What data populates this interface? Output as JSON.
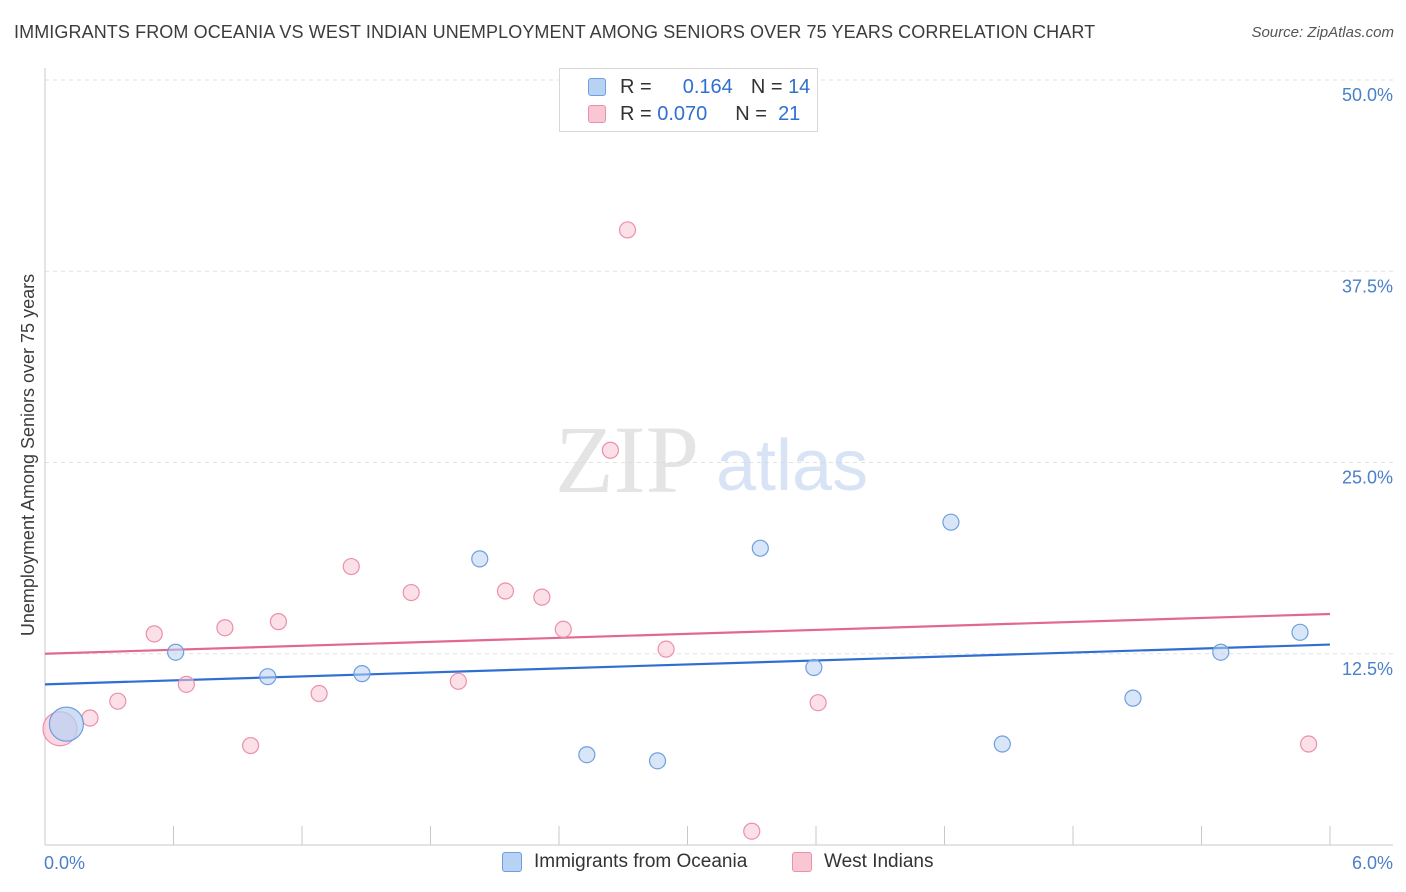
{
  "title": "IMMIGRANTS FROM OCEANIA VS WEST INDIAN UNEMPLOYMENT AMONG SENIORS OVER 75 YEARS CORRELATION CHART",
  "source": "Source: ZipAtlas.com",
  "watermark": {
    "zip": "ZIP",
    "atlas": "atlas"
  },
  "legend": {
    "rows": [
      {
        "r_label": "R =",
        "r_value": "0.164",
        "n_label": "N =",
        "n_value": "14"
      },
      {
        "r_label": "R =",
        "r_value": "0.070",
        "n_label": "N =",
        "n_value": "21"
      }
    ]
  },
  "bottom_legend": {
    "series1": "Immigrants from Oceania",
    "series2": "West Indians"
  },
  "colors": {
    "blue_fill": "#b8d2f3",
    "blue_stroke": "#6f9fe0",
    "blue_line": "#2f6fd1",
    "pink_fill": "#f9c6d4",
    "pink_stroke": "#ec8fab",
    "pink_line": "#e2688f",
    "tick_text": "#4a7fc9",
    "grid": "#e2e2e2"
  },
  "chart_data": {
    "type": "scatter",
    "title": "IMMIGRANTS FROM OCEANIA VS WEST INDIAN UNEMPLOYMENT AMONG SENIORS OVER 75 YEARS CORRELATION CHART",
    "xlabel": "",
    "ylabel": "Unemployment Among Seniors over 75 years",
    "xlim": [
      0,
      6
    ],
    "ylim": [
      0,
      50
    ],
    "x_tick_labels": [
      "0.0%",
      "6.0%"
    ],
    "y_ticks": [
      12.5,
      25.0,
      37.5,
      50.0
    ],
    "y_tick_labels": [
      "12.5%",
      "25.0%",
      "37.5%",
      "50.0%"
    ],
    "grid": true,
    "series": [
      {
        "name": "Immigrants from Oceania",
        "color": "blue",
        "R": 0.164,
        "N": 14,
        "points": [
          {
            "x": 0.1,
            "y": 7.9,
            "big": true
          },
          {
            "x": 0.61,
            "y": 12.6
          },
          {
            "x": 1.04,
            "y": 11.0
          },
          {
            "x": 1.48,
            "y": 11.2
          },
          {
            "x": 2.03,
            "y": 18.7
          },
          {
            "x": 2.53,
            "y": 5.9
          },
          {
            "x": 2.86,
            "y": 5.5
          },
          {
            "x": 3.34,
            "y": 19.4
          },
          {
            "x": 3.59,
            "y": 11.6
          },
          {
            "x": 4.23,
            "y": 21.1
          },
          {
            "x": 4.47,
            "y": 6.6
          },
          {
            "x": 5.08,
            "y": 9.6
          },
          {
            "x": 5.49,
            "y": 12.6
          },
          {
            "x": 5.86,
            "y": 13.9
          }
        ],
        "trend": {
          "x1": 0,
          "y1": 10.5,
          "x2": 6,
          "y2": 13.1
        }
      },
      {
        "name": "West Indians",
        "color": "pink",
        "R": 0.07,
        "N": 21,
        "points": [
          {
            "x": 0.07,
            "y": 7.6,
            "big": true
          },
          {
            "x": 0.21,
            "y": 8.3
          },
          {
            "x": 0.34,
            "y": 9.4
          },
          {
            "x": 0.51,
            "y": 13.8
          },
          {
            "x": 0.66,
            "y": 10.5
          },
          {
            "x": 0.84,
            "y": 14.2
          },
          {
            "x": 0.96,
            "y": 6.5
          },
          {
            "x": 1.09,
            "y": 14.6
          },
          {
            "x": 1.28,
            "y": 9.9
          },
          {
            "x": 1.43,
            "y": 18.2
          },
          {
            "x": 1.71,
            "y": 16.5
          },
          {
            "x": 1.93,
            "y": 10.7
          },
          {
            "x": 2.15,
            "y": 16.6
          },
          {
            "x": 2.32,
            "y": 16.2
          },
          {
            "x": 2.42,
            "y": 14.1
          },
          {
            "x": 2.64,
            "y": 25.8
          },
          {
            "x": 2.72,
            "y": 40.2
          },
          {
            "x": 2.9,
            "y": 12.8
          },
          {
            "x": 3.3,
            "y": 0.9
          },
          {
            "x": 3.61,
            "y": 9.3
          },
          {
            "x": 5.9,
            "y": 6.6
          }
        ],
        "trend": {
          "x1": 0,
          "y1": 12.5,
          "x2": 6,
          "y2": 15.1
        }
      }
    ]
  }
}
